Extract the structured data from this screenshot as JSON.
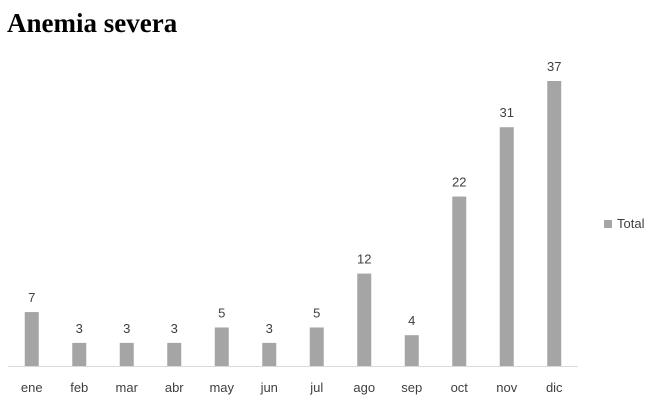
{
  "chart_data": {
    "type": "bar",
    "title": "Anemia severa",
    "categories": [
      "ene",
      "feb",
      "mar",
      "abr",
      "may",
      "jun",
      "jul",
      "ago",
      "sep",
      "oct",
      "nov",
      "dic"
    ],
    "series": [
      {
        "name": "Total",
        "values": [
          7,
          3,
          3,
          3,
          5,
          3,
          5,
          12,
          4,
          22,
          31,
          37
        ]
      }
    ],
    "ylim": [
      0,
      37
    ],
    "grid": false,
    "legend_position": "right",
    "data_labels": true,
    "bar_color": "#a5a5a5"
  }
}
